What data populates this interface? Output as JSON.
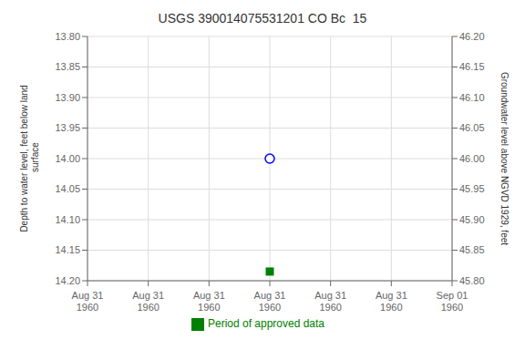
{
  "chart_data": {
    "type": "scatter",
    "title": "USGS 390014075531201 CO Bc  15",
    "categories": [
      "Aug 31\n1960",
      "Aug 31\n1960",
      "Aug 31\n1960",
      "Aug 31\n1960",
      "Aug 31\n1960",
      "Aug 31\n1960",
      "Sep 01\n1960"
    ],
    "series": [
      {
        "color": "#0000ff",
        "marker": "circle",
        "values": [
          null,
          null,
          null,
          14.0,
          null,
          null,
          null
        ]
      },
      {
        "name": "Period of approved data",
        "color": "#008000",
        "marker": "square",
        "values": [
          null,
          null,
          null,
          14.185,
          null,
          null,
          null
        ]
      }
    ],
    "ylabel": "Depth to water level, feet below land\n surface",
    "y2label": "Groundwater level above NGVD 1929, feet",
    "ylim": [
      14.2,
      13.8
    ],
    "yticks": [
      {
        "value": 13.8,
        "label": "13.80"
      },
      {
        "value": 13.85,
        "label": "13.85"
      },
      {
        "value": 13.9,
        "label": "13.90"
      },
      {
        "value": 13.95,
        "label": "13.95"
      },
      {
        "value": 14.0,
        "label": "14.00"
      },
      {
        "value": 14.05,
        "label": "14.05"
      },
      {
        "value": 14.1,
        "label": "14.10"
      },
      {
        "value": 14.15,
        "label": "14.15"
      },
      {
        "value": 14.2,
        "label": "14.20"
      }
    ],
    "y2lim": [
      45.8,
      46.2
    ],
    "y2ticks": [
      {
        "value": 46.2,
        "label": "46.20"
      },
      {
        "value": 46.15,
        "label": "46.15"
      },
      {
        "value": 46.1,
        "label": "46.10"
      },
      {
        "value": 46.05,
        "label": "46.05"
      },
      {
        "value": 46.0,
        "label": "46.00"
      },
      {
        "value": 45.95,
        "label": "45.95"
      },
      {
        "value": 45.9,
        "label": "45.90"
      },
      {
        "value": 45.85,
        "label": "45.85"
      },
      {
        "value": 45.8,
        "label": "45.80"
      }
    ],
    "grid": true
  }
}
